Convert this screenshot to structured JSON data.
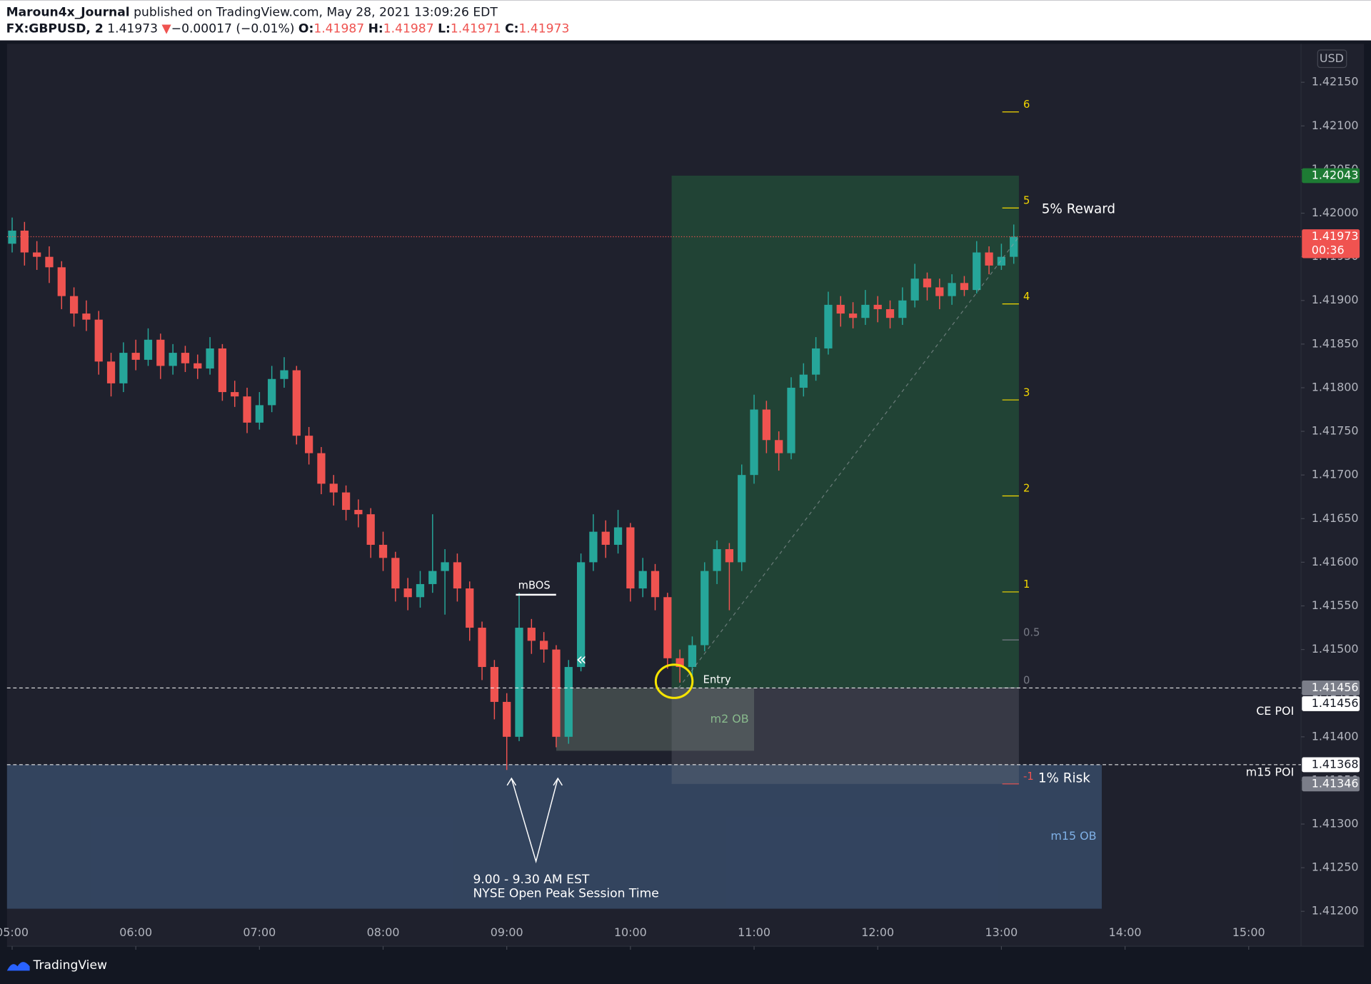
{
  "header": {
    "publisher": "Maroun4x_Journal",
    "published": "published on TradingView.com, May 28, 2021 13:09:26 EDT",
    "symbol": "FX:GBPUSD, 2",
    "last": "1.41973",
    "arrow": "▼",
    "change": "−0.00017 (−0.01%)",
    "o_label": "O:",
    "o": "1.41987",
    "h_label": "H:",
    "h": "1.41987",
    "l_label": "L:",
    "l": "1.41971",
    "c_label": "C:",
    "c": "1.41973"
  },
  "chart_data": {
    "type": "candlestick",
    "currency": "USD",
    "x": [
      300,
      306,
      312,
      318,
      324,
      330,
      336,
      342,
      348,
      354,
      360,
      366,
      372,
      378,
      384,
      390,
      396,
      402,
      408,
      414,
      420,
      426,
      432,
      438,
      444,
      450,
      456,
      462,
      468,
      474,
      480,
      486,
      492,
      498,
      504,
      510,
      516,
      522,
      528,
      534,
      540,
      546,
      552,
      558,
      564,
      570,
      576,
      582,
      588,
      594,
      600,
      606,
      612,
      618,
      624,
      630,
      636,
      642,
      648,
      654,
      660,
      666,
      672,
      678,
      684,
      690,
      696,
      702,
      708,
      714,
      720,
      726,
      732,
      738,
      744,
      750,
      756,
      762,
      768,
      774,
      780,
      786
    ],
    "open": [
      1.41965,
      1.4198,
      1.41955,
      1.4195,
      1.41938,
      1.41905,
      1.41885,
      1.41878,
      1.4183,
      1.41805,
      1.4184,
      1.41832,
      1.41855,
      1.41825,
      1.4184,
      1.41828,
      1.41822,
      1.41845,
      1.41795,
      1.4179,
      1.4176,
      1.4178,
      1.4181,
      1.4182,
      1.41745,
      1.41725,
      1.4169,
      1.4168,
      1.4166,
      1.41655,
      1.4162,
      1.41605,
      1.4157,
      1.4156,
      1.41575,
      1.4159,
      1.416,
      1.4157,
      1.41525,
      1.4148,
      1.4144,
      1.414,
      1.41525,
      1.4151,
      1.415,
      1.414,
      1.4148,
      1.416,
      1.41635,
      1.4162,
      1.4164,
      1.4157,
      1.4159,
      1.4156,
      1.4149,
      1.4148,
      1.41505,
      1.4159,
      1.41615,
      1.416,
      1.417,
      1.41775,
      1.4174,
      1.41725,
      1.418,
      1.41815,
      1.41845,
      1.41895,
      1.41885,
      1.4188,
      1.41895,
      1.4189,
      1.4188,
      1.419,
      1.41925,
      1.41915,
      1.41905,
      1.4192,
      1.41912,
      1.41955,
      1.4194,
      1.4195
    ],
    "high": [
      1.41995,
      1.4199,
      1.41968,
      1.41962,
      1.41945,
      1.41915,
      1.419,
      1.41888,
      1.4184,
      1.41852,
      1.41855,
      1.41868,
      1.41862,
      1.4185,
      1.41848,
      1.41838,
      1.41858,
      1.4185,
      1.41808,
      1.418,
      1.41795,
      1.41825,
      1.41835,
      1.41825,
      1.41755,
      1.41732,
      1.417,
      1.41688,
      1.41672,
      1.41662,
      1.41635,
      1.41612,
      1.41582,
      1.4159,
      1.41655,
      1.41615,
      1.4161,
      1.41578,
      1.41532,
      1.41488,
      1.4145,
      1.41565,
      1.41535,
      1.4152,
      1.41505,
      1.41488,
      1.4161,
      1.41655,
      1.41648,
      1.4166,
      1.41645,
      1.41605,
      1.41598,
      1.41565,
      1.415,
      1.41515,
      1.416,
      1.41625,
      1.41622,
      1.41712,
      1.41792,
      1.41785,
      1.4175,
      1.41812,
      1.41828,
      1.41858,
      1.4191,
      1.41905,
      1.41898,
      1.41912,
      1.41905,
      1.419,
      1.41915,
      1.41942,
      1.41932,
      1.41925,
      1.4193,
      1.41928,
      1.41968,
      1.41962,
      1.41965,
      1.41987
    ],
    "low": [
      1.41955,
      1.4194,
      1.41935,
      1.4192,
      1.4189,
      1.4187,
      1.41865,
      1.41815,
      1.4179,
      1.41795,
      1.4182,
      1.41825,
      1.4181,
      1.41815,
      1.41818,
      1.4181,
      1.41815,
      1.41785,
      1.41778,
      1.41748,
      1.41752,
      1.41772,
      1.418,
      1.41735,
      1.41712,
      1.41678,
      1.41665,
      1.41648,
      1.4164,
      1.41605,
      1.4159,
      1.41555,
      1.41545,
      1.41548,
      1.41565,
      1.4154,
      1.41555,
      1.4151,
      1.41465,
      1.4142,
      1.41362,
      1.41395,
      1.41495,
      1.41485,
      1.41388,
      1.41392,
      1.41475,
      1.4159,
      1.41605,
      1.4161,
      1.41555,
      1.4156,
      1.41545,
      1.41478,
      1.41462,
      1.4147,
      1.41498,
      1.41575,
      1.41545,
      1.4159,
      1.4169,
      1.41725,
      1.41705,
      1.41718,
      1.4179,
      1.41808,
      1.41838,
      1.4187,
      1.41868,
      1.41872,
      1.41875,
      1.41868,
      1.41872,
      1.41892,
      1.419,
      1.4189,
      1.41895,
      1.41905,
      1.41908,
      1.4193,
      1.41935,
      1.41942
    ],
    "close": [
      1.4198,
      1.41955,
      1.4195,
      1.41938,
      1.41905,
      1.41885,
      1.41878,
      1.4183,
      1.41805,
      1.4184,
      1.41832,
      1.41855,
      1.41825,
      1.4184,
      1.41828,
      1.41822,
      1.41845,
      1.41795,
      1.4179,
      1.4176,
      1.4178,
      1.4181,
      1.4182,
      1.41745,
      1.41725,
      1.4169,
      1.4168,
      1.4166,
      1.41655,
      1.4162,
      1.41605,
      1.4157,
      1.4156,
      1.41575,
      1.4159,
      1.416,
      1.4157,
      1.41525,
      1.4148,
      1.4144,
      1.414,
      1.41525,
      1.4151,
      1.415,
      1.414,
      1.4148,
      1.416,
      1.41635,
      1.4162,
      1.4164,
      1.4157,
      1.4159,
      1.4156,
      1.4149,
      1.4148,
      1.41505,
      1.4159,
      1.41615,
      1.416,
      1.417,
      1.41775,
      1.4174,
      1.41725,
      1.418,
      1.41815,
      1.41845,
      1.41895,
      1.41885,
      1.4188,
      1.41895,
      1.4189,
      1.4188,
      1.419,
      1.41925,
      1.41915,
      1.41905,
      1.4192,
      1.41912,
      1.41955,
      1.4194,
      1.4195,
      1.41973
    ],
    "up_color": "#26a69a",
    "down_color": "#ef5350",
    "xlim": [
      297.5,
      925.4
    ],
    "xticks": [
      {
        "value": 300,
        "label": "05:00"
      },
      {
        "value": 360,
        "label": "06:00"
      },
      {
        "value": 420,
        "label": "07:00"
      },
      {
        "value": 480,
        "label": "08:00"
      },
      {
        "value": 540,
        "label": "09:00"
      },
      {
        "value": 600,
        "label": "10:00"
      },
      {
        "value": 660,
        "label": "11:00"
      },
      {
        "value": 720,
        "label": "12:00"
      },
      {
        "value": 780,
        "label": "13:00"
      },
      {
        "value": 840,
        "label": "14:00"
      },
      {
        "value": 900,
        "label": "15:00"
      }
    ],
    "ylim": [
      1.4116,
      1.42194
    ],
    "yticks": [
      {
        "value": 1.4215,
        "label": "1.42150"
      },
      {
        "value": 1.421,
        "label": "1.42100"
      },
      {
        "value": 1.4205,
        "label": "1.42050"
      },
      {
        "value": 1.42,
        "label": "1.42000"
      },
      {
        "value": 1.4195,
        "label": "1.41950"
      },
      {
        "value": 1.419,
        "label": "1.41900"
      },
      {
        "value": 1.4185,
        "label": "1.41850"
      },
      {
        "value": 1.418,
        "label": "1.41800"
      },
      {
        "value": 1.4175,
        "label": "1.41750"
      },
      {
        "value": 1.417,
        "label": "1.41700"
      },
      {
        "value": 1.4165,
        "label": "1.41650"
      },
      {
        "value": 1.416,
        "label": "1.41600"
      },
      {
        "value": 1.4155,
        "label": "1.41550"
      },
      {
        "value": 1.415,
        "label": "1.41500"
      },
      {
        "value": 1.4145,
        "label": "1.41450"
      },
      {
        "value": 1.414,
        "label": "1.41400"
      },
      {
        "value": 1.4135,
        "label": "1.41350"
      },
      {
        "value": 1.413,
        "label": "1.41300"
      },
      {
        "value": 1.4125,
        "label": "1.41250"
      },
      {
        "value": 1.412,
        "label": "1.41200"
      }
    ],
    "grid": false,
    "last_price": {
      "value": 1.41973,
      "countdown": "00:36",
      "color": "#f05350"
    },
    "price_labels": [
      {
        "value": 1.42043,
        "color": "#1e7b34",
        "text_color": "#ffffff"
      },
      {
        "value": 1.41456,
        "color": "#7b7e89",
        "text_color": "#ffffff"
      },
      {
        "value": 1.41456,
        "color": "#ffffff",
        "text_color": "#131722",
        "name": "CE POI"
      },
      {
        "value": 1.41368,
        "color": "#ffffff",
        "text_color": "#131722",
        "name": "m15 POI"
      },
      {
        "value": 1.41346,
        "color": "#7b7e89",
        "text_color": "#ffffff"
      }
    ],
    "zones": [
      {
        "name": "m2 OB",
        "top": 1.41456,
        "bottom": 1.41384,
        "start": 564,
        "end": 660,
        "color": "rgba(150,175,150,0.28)",
        "text_color": "#8fd18f"
      },
      {
        "name": "m15 OB",
        "top": 1.41368,
        "bottom": 1.41203,
        "start": 297.5,
        "end": 828.7,
        "color": "rgba(75,110,155,0.45)",
        "text_color": "#7fb0e6"
      }
    ],
    "position": {
      "entry": 1.41456,
      "target": 1.42043,
      "stop": 1.41346,
      "start": 620,
      "end": 788.5,
      "reward_label": "5% Reward",
      "risk_label": "1% Risk",
      "entry_label": "Entry",
      "levels": [
        {
          "level": 6,
          "price": 1.42116,
          "color": "#f5d800"
        },
        {
          "level": 5,
          "price": 1.42006,
          "color": "#f5d800"
        },
        {
          "level": 4,
          "price": 1.41896,
          "color": "#f5d800"
        },
        {
          "level": 3,
          "price": 1.41786,
          "color": "#f5d800"
        },
        {
          "level": 2,
          "price": 1.41676,
          "color": "#f5d800"
        },
        {
          "level": 1,
          "price": 1.41566,
          "color": "#f5d800"
        },
        {
          "level": 0.5,
          "price": 1.41511,
          "color": "#787b86"
        },
        {
          "level": 0,
          "price": 1.41456,
          "color": "#787b86"
        },
        {
          "level": -1,
          "price": 1.41346,
          "color": "#ef5350"
        }
      ]
    },
    "annotations": {
      "mbos": "mBOS",
      "arrow": "«",
      "session_1": "9.00 - 9.30 AM EST",
      "session_2": "NYSE Open Peak Session Time"
    }
  },
  "footer": {
    "brand": "TradingView"
  }
}
